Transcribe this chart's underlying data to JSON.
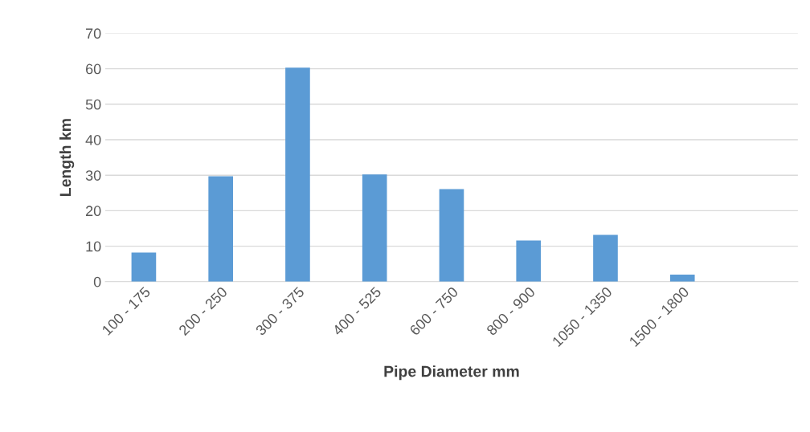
{
  "chart_data": {
    "type": "bar",
    "xlabel": "Pipe Diameter mm",
    "ylabel": "Length km",
    "categories": [
      "100 - 175",
      "200 - 250",
      "300 - 375",
      "400 - 525",
      "600 - 750",
      "800 - 900",
      "1050 - 1350",
      "1500 - 1800",
      null
    ],
    "values": [
      8.2,
      29.7,
      60.3,
      30.2,
      26.1,
      11.6,
      13.2,
      2.0,
      null
    ],
    "color": "#5b9bd5",
    "ylim": [
      0,
      70
    ],
    "yticks": [
      0,
      10,
      20,
      30,
      40,
      50,
      60,
      70
    ],
    "grid": "y",
    "legend": false
  }
}
